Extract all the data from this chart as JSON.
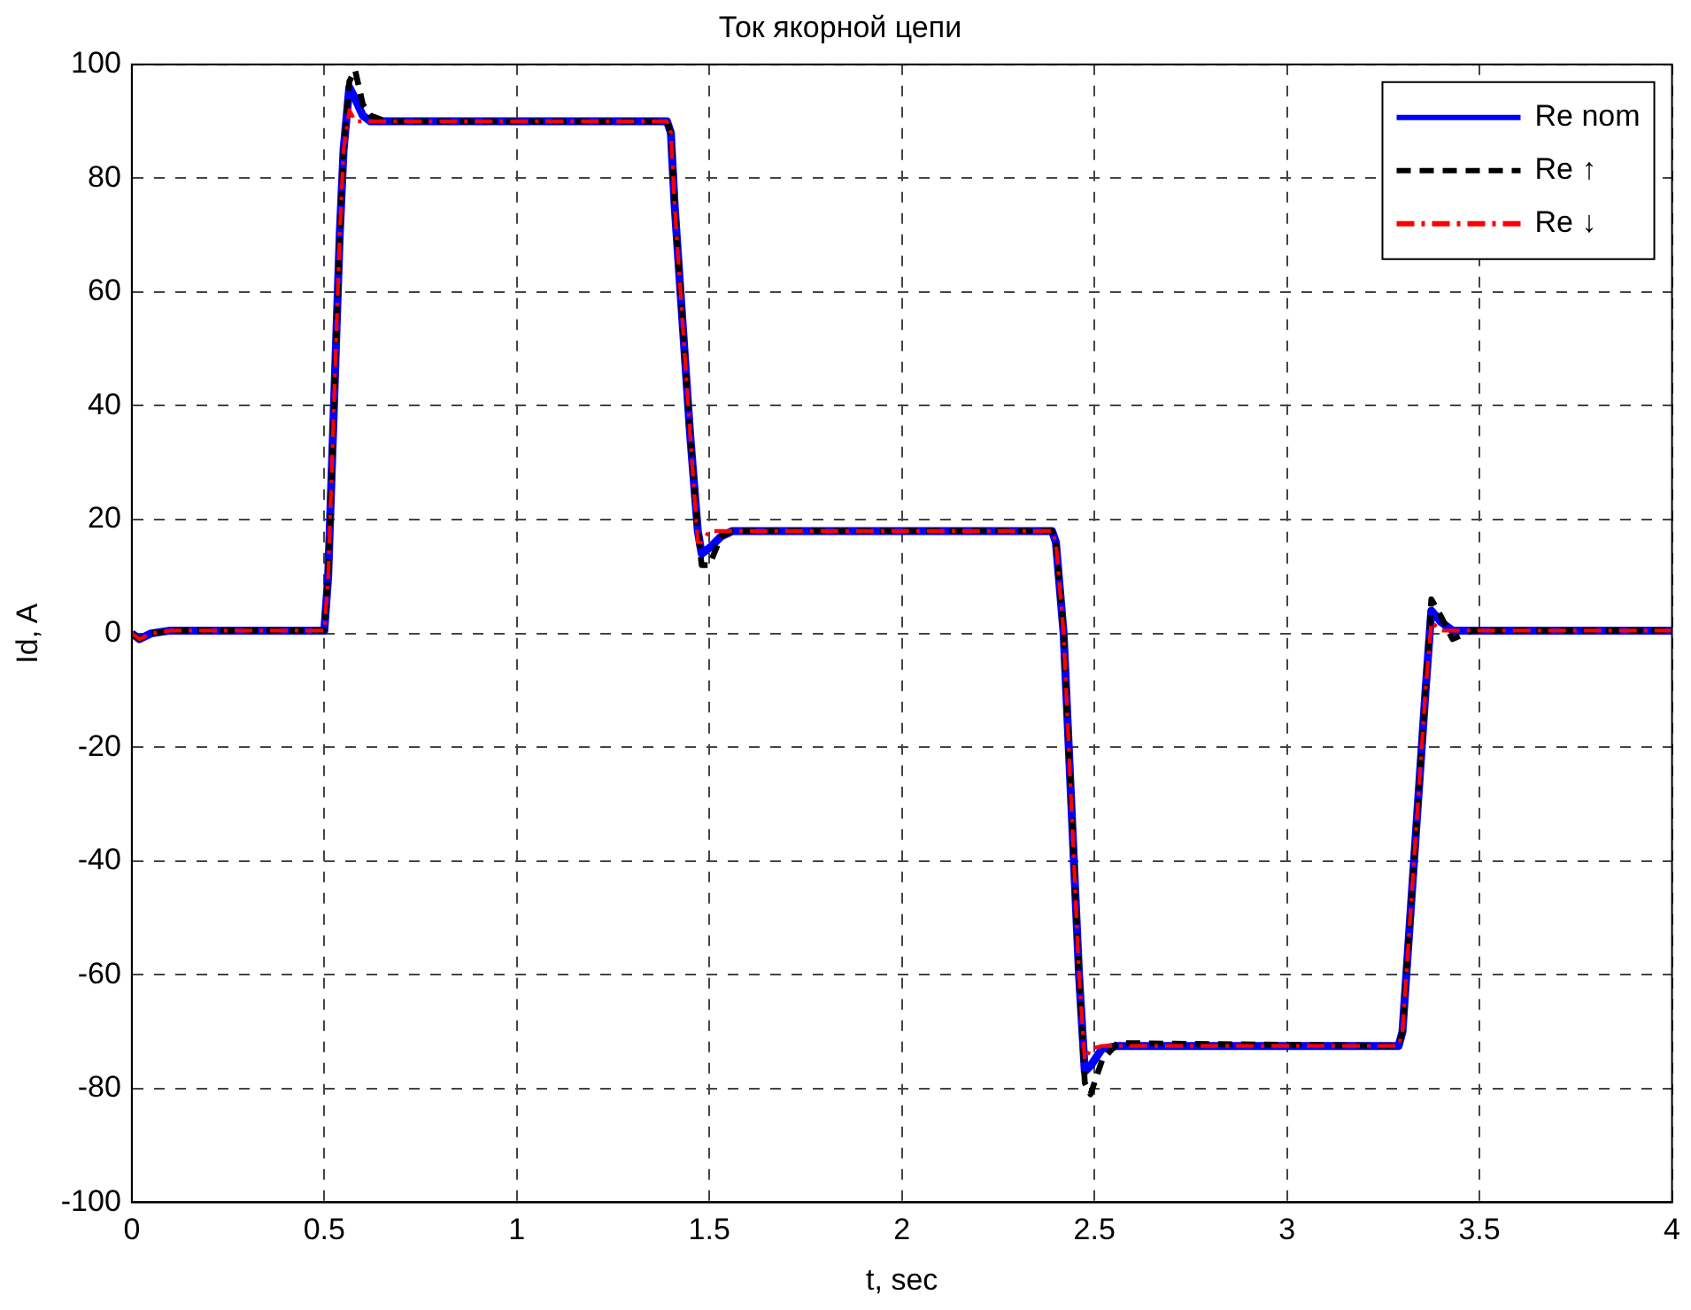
{
  "chart_data": {
    "type": "line",
    "title": "Ток якорной цепи",
    "xlabel": "t, sec",
    "ylabel": "Id, A",
    "x": [
      0,
      0.02,
      0.05,
      0.1,
      0.5,
      0.51,
      0.52,
      0.53,
      0.54,
      0.55,
      0.565,
      0.58,
      0.6,
      0.62,
      0.66,
      1.39,
      1.4,
      1.41,
      1.43,
      1.45,
      1.47,
      1.48,
      1.5,
      1.53,
      1.56,
      2.39,
      2.4,
      2.42,
      2.44,
      2.46,
      2.475,
      2.49,
      2.52,
      2.56,
      3.29,
      3.3,
      3.32,
      3.34,
      3.36,
      3.375,
      3.4,
      3.43,
      3.48,
      4
    ],
    "series": [
      {
        "name": "Re nom",
        "color": "#0000ff",
        "line_style": "solid",
        "values": [
          0,
          -1,
          0,
          0.5,
          0.5,
          10,
          30,
          50,
          70,
          85,
          96,
          94,
          91,
          90,
          90,
          90,
          88,
          75,
          55,
          35,
          18,
          14,
          15,
          17,
          18,
          18,
          16,
          0,
          -30,
          -60,
          -77,
          -76,
          -73,
          -72.5,
          -72.5,
          -70,
          -50,
          -30,
          -10,
          4,
          2,
          0.5,
          0.5,
          0.5
        ]
      },
      {
        "name": "Re ↑",
        "color": "#000000",
        "line_style": "dashed",
        "values": [
          0,
          -1,
          0,
          0.5,
          0.5,
          10,
          30,
          50,
          70,
          85,
          97,
          99,
          93,
          91,
          90,
          90,
          88,
          75,
          55,
          35,
          18,
          12,
          12,
          17,
          18,
          18,
          16,
          0,
          -30,
          -60,
          -79,
          -81,
          -75,
          -72,
          -72.5,
          -70,
          -50,
          -30,
          -10,
          6,
          3,
          -1,
          0.5,
          0.5
        ]
      },
      {
        "name": "Re ↓",
        "color": "#ff0000",
        "line_style": "dashdot",
        "values": [
          0,
          -1,
          0,
          0.5,
          0.5,
          10,
          30,
          50,
          70,
          85,
          92,
          90,
          90,
          90,
          90,
          90,
          88,
          75,
          55,
          35,
          16,
          16,
          18,
          18,
          18,
          18,
          16,
          0,
          -30,
          -60,
          -75,
          -73,
          -72.5,
          -72.5,
          -72.5,
          -70,
          -50,
          -30,
          -10,
          2,
          0.5,
          0.5,
          0.5,
          0.5
        ]
      }
    ],
    "xlim": [
      0,
      4
    ],
    "xticks": [
      0,
      0.5,
      1,
      1.5,
      2,
      2.5,
      3,
      3.5,
      4
    ],
    "ylim": [
      -100,
      100
    ],
    "yticks": [
      -100,
      -80,
      -60,
      -40,
      -20,
      0,
      20,
      40,
      60,
      80,
      100
    ],
    "grid": true,
    "legend": "top right",
    "marker": "none"
  }
}
